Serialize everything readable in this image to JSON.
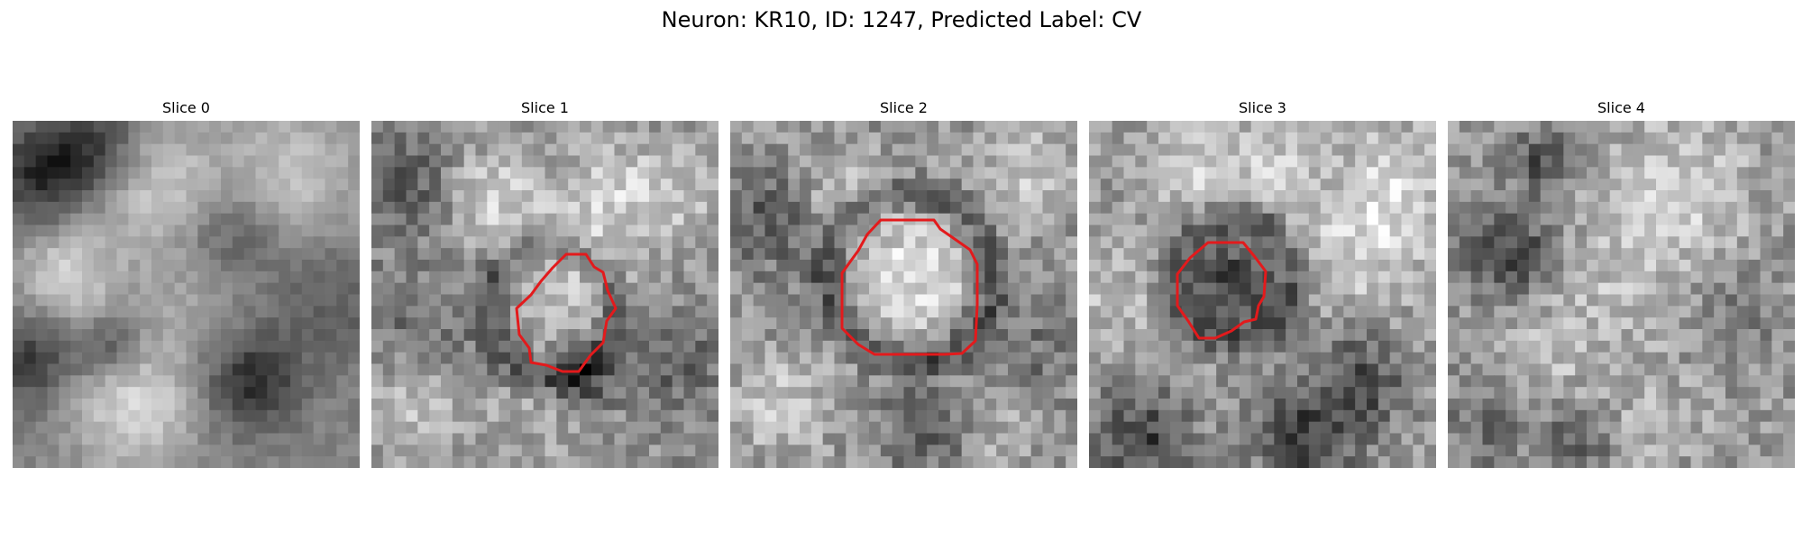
{
  "figure": {
    "title": "Neuron: KR10, ID: 1247, Predicted Label: CV"
  },
  "panels": [
    {
      "title": "Slice 0",
      "has_contour": false
    },
    {
      "title": "Slice 1",
      "has_contour": true
    },
    {
      "title": "Slice 2",
      "has_contour": true
    },
    {
      "title": "Slice 3",
      "has_contour": true
    },
    {
      "title": "Slice 4",
      "has_contour": false
    }
  ],
  "contour_color": "#e31a1c",
  "colormap": "gray"
}
